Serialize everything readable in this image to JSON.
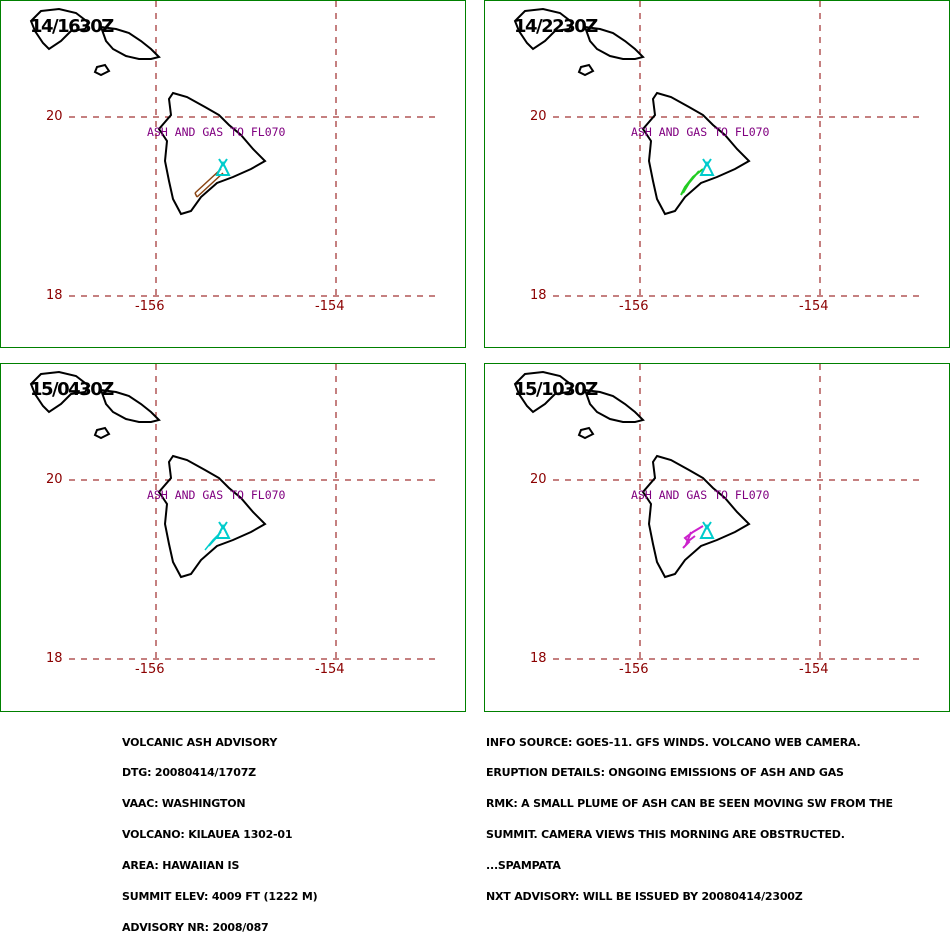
{
  "colors": {
    "frame": "#008000",
    "grid": "#8b0000",
    "label": "#800080",
    "volcano": "#00cccc"
  },
  "panels": [
    {
      "time": "14/1630Z",
      "label": "ASH AND GAS TO FL070",
      "plume_color": "#8b4513"
    },
    {
      "time": "14/2230Z",
      "label": "ASH AND GAS TO FL070",
      "plume_color": "#22cc22"
    },
    {
      "time": "15/0430Z",
      "label": "ASH AND GAS TO FL070",
      "plume_color": "#00cccc"
    },
    {
      "time": "15/1030Z",
      "label": "ASH AND GAS TO FL070",
      "plume_color": "#cc22cc"
    }
  ],
  "axes": {
    "lat_20": "20",
    "lat_18": "18",
    "lon_156": "-156",
    "lon_154": "-154"
  },
  "advisory": {
    "title": "VOLCANIC ASH ADVISORY",
    "dtg": "DTG: 20080414/1707Z",
    "vaac": "VAAC: WASHINGTON",
    "volcano": "VOLCANO: KILAUEA 1302-01",
    "area": "AREA: HAWAIIAN IS",
    "summit": "SUMMIT ELEV: 4009 FT (1222 M)",
    "nr": "ADVISORY NR: 2008/087"
  },
  "details": {
    "info_source": "INFO SOURCE: GOES-11. GFS WINDS. VOLCANO WEB CAMERA.",
    "eruption": "ERUPTION DETAILS: ONGOING EMISSIONS OF ASH AND GAS",
    "rmk1": "RMK: A SMALL PLUME OF ASH CAN BE SEEN MOVING SW FROM THE",
    "rmk2": "SUMMIT. CAMERA VIEWS THIS MORNING ARE OBSTRUCTED.",
    "rmk3": "...SPAMPATA",
    "next": "NXT ADVISORY: WILL BE ISSUED BY 20080414/2300Z"
  }
}
